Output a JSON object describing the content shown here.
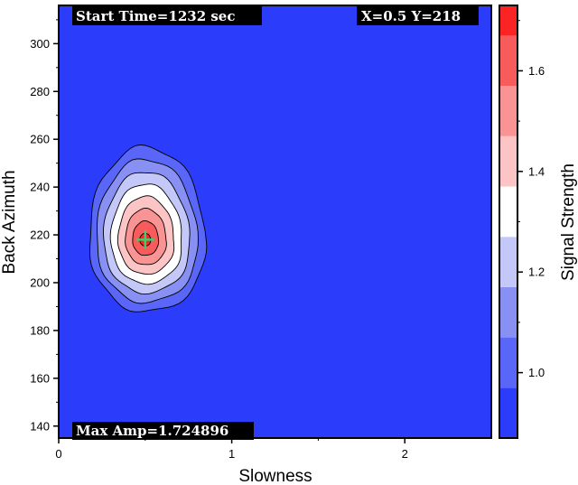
{
  "chart_data": {
    "type": "heatmap",
    "xlabel": "Slowness",
    "ylabel": "Back Azimuth",
    "colorbar_label": "Signal Strength",
    "xlim": [
      0,
      2.5
    ],
    "ylim": [
      135,
      316
    ],
    "x_ticks": [
      {
        "value": 0,
        "label": "0"
      },
      {
        "value": 1,
        "label": "1"
      },
      {
        "value": 2,
        "label": "2"
      }
    ],
    "y_ticks": [
      {
        "value": 140,
        "label": "140"
      },
      {
        "value": 160,
        "label": "160"
      },
      {
        "value": 180,
        "label": "180"
      },
      {
        "value": 200,
        "label": "200"
      },
      {
        "value": 220,
        "label": "220"
      },
      {
        "value": 240,
        "label": "240"
      },
      {
        "value": 260,
        "label": "260"
      },
      {
        "value": 280,
        "label": "280"
      },
      {
        "value": 300,
        "label": "300"
      }
    ],
    "color_range": [
      0.87,
      1.73
    ],
    "colorbar_ticks": [
      {
        "value": 1.0,
        "label": "1.0"
      },
      {
        "value": 1.2,
        "label": "1.2"
      },
      {
        "value": 1.4,
        "label": "1.4"
      },
      {
        "value": 1.6,
        "label": "1.6"
      }
    ],
    "color_levels": [
      {
        "from": 0.87,
        "to": 0.97,
        "color": "#2b3cfb"
      },
      {
        "from": 0.97,
        "to": 1.07,
        "color": "#5966f7"
      },
      {
        "from": 1.07,
        "to": 1.17,
        "color": "#8891f3"
      },
      {
        "from": 1.17,
        "to": 1.27,
        "color": "#c4c8f8"
      },
      {
        "from": 1.27,
        "to": 1.37,
        "color": "#ffffff"
      },
      {
        "from": 1.37,
        "to": 1.47,
        "color": "#fcc4c4"
      },
      {
        "from": 1.47,
        "to": 1.57,
        "color": "#fa9494"
      },
      {
        "from": 1.57,
        "to": 1.67,
        "color": "#f75b5b"
      },
      {
        "from": 1.67,
        "to": 1.73,
        "color": "#fa2424"
      }
    ],
    "peak": {
      "x": 0.5,
      "y": 218,
      "value": 1.724896
    },
    "marker_color": "#3ecf6a",
    "background_color": "#2b3cfb",
    "start_time_text": "Start Time=1232 sec",
    "position_text": "X=0.5 Y=218",
    "max_amp_text": "Max Amp=1.724896"
  }
}
